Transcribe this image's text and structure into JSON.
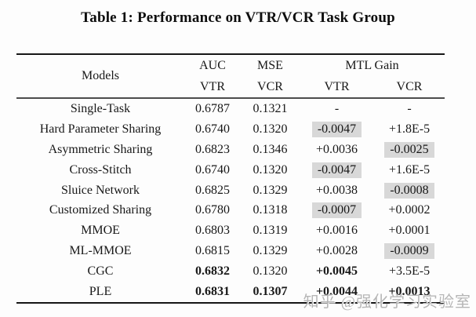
{
  "title": "Table 1: Performance on VTR/VCR Task Group",
  "colors": {
    "highlight": "#d8d8d8",
    "rule_heavy": "#161616",
    "rule_mid": "#4d4d4d",
    "watermark": "#b6b6b6"
  },
  "table": {
    "header": {
      "models": "Models",
      "auc": "AUC",
      "mse": "MSE",
      "mtl_gain": "MTL Gain",
      "sub_auc": "VTR",
      "sub_mse": "VCR",
      "sub_mtl_vtr": "VTR",
      "sub_mtl_vcr": "VCR"
    },
    "rows": [
      {
        "model": "Single-Task",
        "auc_vtr": "0.6787",
        "mse_vcr": "0.1321",
        "mtl_vtr": "-",
        "mtl_vcr": "-"
      },
      {
        "model": "Hard Parameter Sharing",
        "auc_vtr": "0.6740",
        "mse_vcr": "0.1320",
        "mtl_vtr": "-0.0047",
        "mtl_vcr": "+1.8E-5",
        "mtl_vtr_hl": true
      },
      {
        "model": "Asymmetric Sharing",
        "auc_vtr": "0.6823",
        "mse_vcr": "0.1346",
        "mtl_vtr": "+0.0036",
        "mtl_vcr": "-0.0025",
        "mtl_vcr_hl": true
      },
      {
        "model": "Cross-Stitch",
        "auc_vtr": "0.6740",
        "mse_vcr": "0.1320",
        "mtl_vtr": "-0.0047",
        "mtl_vcr": "+1.6E-5",
        "mtl_vtr_hl": true
      },
      {
        "model": "Sluice Network",
        "auc_vtr": "0.6825",
        "mse_vcr": "0.1329",
        "mtl_vtr": "+0.0038",
        "mtl_vcr": "-0.0008",
        "mtl_vcr_hl": true
      },
      {
        "model": "Customized Sharing",
        "auc_vtr": "0.6780",
        "mse_vcr": "0.1318",
        "mtl_vtr": "-0.0007",
        "mtl_vcr": "+0.0002",
        "mtl_vtr_hl": true
      },
      {
        "model": "MMOE",
        "auc_vtr": "0.6803",
        "mse_vcr": "0.1319",
        "mtl_vtr": "+0.0016",
        "mtl_vcr": "+0.0001"
      },
      {
        "model": "ML-MMOE",
        "auc_vtr": "0.6815",
        "mse_vcr": "0.1329",
        "mtl_vtr": "+0.0028",
        "mtl_vcr": "-0.0009",
        "mtl_vcr_hl": true
      },
      {
        "model": "CGC",
        "auc_vtr": "0.6832",
        "mse_vcr": "0.1320",
        "mtl_vtr": "+0.0045",
        "mtl_vcr": "+3.5E-5",
        "auc_vtr_bold": true,
        "mtl_vtr_bold": true
      },
      {
        "model": "PLE",
        "auc_vtr": "0.6831",
        "mse_vcr": "0.1307",
        "mtl_vtr": "+0.0044",
        "mtl_vcr": "+0.0013",
        "auc_vtr_bold": true,
        "mse_vcr_bold": true,
        "mtl_vtr_bold": true,
        "mtl_vcr_bold": true
      }
    ]
  },
  "watermark": "知乎 @强化学习实验室"
}
